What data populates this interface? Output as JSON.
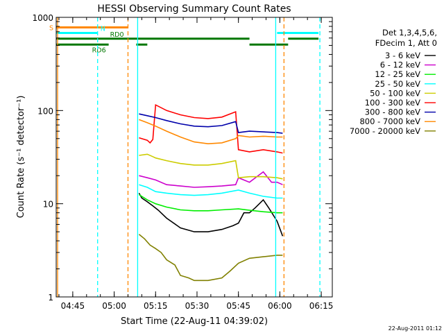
{
  "chart_data": {
    "type": "line",
    "title": "HESSI Observing Summary Count Rates",
    "xlabel": "Start Time (22-Aug-11 04:39:02)",
    "ylabel": "Count Rate (s⁻¹ detector⁻¹)",
    "x_unit": "minutes since 04:39:02",
    "xlim": [
      0,
      100
    ],
    "ylim": [
      1,
      1000
    ],
    "y_scale": "log",
    "x_ticks": [
      {
        "label": "04:45",
        "x": 6
      },
      {
        "label": "05:00",
        "x": 21
      },
      {
        "label": "05:15",
        "x": 36
      },
      {
        "label": "05:30",
        "x": 51
      },
      {
        "label": "05:45",
        "x": 66
      },
      {
        "label": "06:00",
        "x": 81
      },
      {
        "label": "06:15",
        "x": 96
      }
    ],
    "y_ticks": [
      {
        "label": "1",
        "y": 1
      },
      {
        "label": "10",
        "y": 10
      },
      {
        "label": "100",
        "y": 100
      },
      {
        "label": "1000",
        "y": 1000
      }
    ],
    "legend": {
      "header": [
        "Det 1,3,4,5,6,",
        "FDecim 1, Att 0"
      ],
      "placement": "right"
    },
    "series": [
      {
        "name": "3 - 6 keV",
        "color": "#000000",
        "x": [
          30,
          31,
          33,
          35,
          37,
          40,
          45,
          50,
          55,
          60,
          64,
          66,
          68,
          70,
          72,
          75,
          77,
          80,
          82
        ],
        "y": [
          13,
          11.5,
          10.5,
          9.5,
          8.5,
          7,
          5.5,
          5,
          5,
          5.3,
          5.8,
          6.2,
          8,
          8,
          9,
          11,
          9,
          6.5,
          4.5
        ]
      },
      {
        "name": "6 - 12 keV",
        "color": "#cc00cc",
        "x": [
          30,
          33,
          36,
          40,
          45,
          50,
          55,
          60,
          65,
          66,
          70,
          75,
          78,
          80,
          82
        ],
        "y": [
          20,
          19,
          18,
          16,
          15.5,
          15,
          15.2,
          15.5,
          16,
          19,
          17,
          22,
          17,
          17,
          16
        ]
      },
      {
        "name": "12 - 25 keV",
        "color": "#00ee00",
        "x": [
          30,
          33,
          36,
          40,
          45,
          50,
          55,
          60,
          66,
          70,
          75,
          80,
          82
        ],
        "y": [
          12.5,
          11,
          10,
          9.2,
          8.6,
          8.4,
          8.4,
          8.6,
          8.8,
          8.5,
          8.2,
          8,
          8
        ]
      },
      {
        "name": "25 - 50 keV",
        "color": "#00ffff",
        "x": [
          30,
          33,
          36,
          40,
          45,
          50,
          55,
          60,
          66,
          70,
          75,
          80,
          82
        ],
        "y": [
          16,
          15,
          13.5,
          13,
          12.5,
          12.3,
          12.5,
          13,
          14,
          13,
          12,
          11.5,
          11.5
        ]
      },
      {
        "name": "50 - 100 keV",
        "color": "#cccc00",
        "x": [
          30,
          33,
          35,
          36,
          40,
          45,
          50,
          55,
          60,
          65,
          66,
          70,
          75,
          80,
          82
        ],
        "y": [
          33,
          34,
          32,
          31,
          29,
          27,
          26,
          26,
          27,
          29,
          19,
          19.5,
          19.5,
          19,
          18.5
        ]
      },
      {
        "name": "100 - 300 keV",
        "color": "#ff0000",
        "x": [
          30,
          33,
          34,
          35,
          36,
          40,
          45,
          50,
          55,
          60,
          65,
          66,
          70,
          75,
          80,
          82
        ],
        "y": [
          51,
          48,
          45,
          49,
          115,
          100,
          90,
          84,
          82,
          85,
          97,
          38,
          36,
          38,
          36,
          35
        ]
      },
      {
        "name": "300 - 800 keV",
        "color": "#0000aa",
        "x": [
          30,
          33,
          36,
          40,
          45,
          50,
          55,
          60,
          65,
          66,
          70,
          75,
          80,
          82
        ],
        "y": [
          92,
          88,
          84,
          78,
          72,
          68,
          67,
          69,
          76,
          58,
          60,
          59,
          58,
          57
        ]
      },
      {
        "name": "800 - 7000 keV",
        "color": "#ff8800",
        "x": [
          30,
          33,
          36,
          40,
          45,
          50,
          55,
          60,
          65,
          66,
          70,
          75,
          80,
          82
        ],
        "y": [
          80,
          74,
          68,
          60,
          52,
          46,
          44,
          45,
          50,
          54,
          52,
          53,
          52,
          52
        ]
      },
      {
        "name": "7000 - 20000 keV",
        "color": "#808000",
        "x": [
          30,
          32,
          34,
          36,
          38,
          40,
          43,
          45,
          48,
          50,
          55,
          60,
          63,
          66,
          70,
          75,
          80,
          82
        ],
        "y": [
          4.7,
          4.2,
          3.6,
          3.3,
          3,
          2.5,
          2.2,
          1.7,
          1.6,
          1.5,
          1.5,
          1.6,
          1.9,
          2.3,
          2.6,
          2.7,
          2.8,
          2.8
        ]
      }
    ],
    "flags": [
      {
        "label": "S",
        "color": "#ff8800",
        "level": 780,
        "segments": [
          [
            0,
            26
          ]
        ]
      },
      {
        "label": "N",
        "color": "#00ffff",
        "level": 680,
        "segments": [
          [
            0,
            15
          ],
          [
            80,
            95
          ]
        ]
      },
      {
        "label": "RD0",
        "color": "#007700",
        "level": 590,
        "segments": [
          [
            0,
            70
          ],
          [
            84,
            95
          ]
        ]
      },
      {
        "label": "RD6",
        "color": "#007700",
        "level": 510,
        "segments": [
          [
            0,
            19
          ],
          [
            29,
            33
          ],
          [
            70,
            84
          ]
        ]
      }
    ],
    "vlines": [
      {
        "x": 0.5,
        "color": "#ff8800",
        "style": "solid"
      },
      {
        "x": 15,
        "color": "#00ffff",
        "style": "dashed"
      },
      {
        "x": 26,
        "color": "#ff8800",
        "style": "dashed"
      },
      {
        "x": 29.5,
        "color": "#00ffff",
        "style": "solid"
      },
      {
        "x": 79.5,
        "color": "#00ffff",
        "style": "solid"
      },
      {
        "x": 82.5,
        "color": "#ff8800",
        "style": "dashed"
      },
      {
        "x": 95.5,
        "color": "#00ffff",
        "style": "dashed"
      }
    ]
  },
  "footer": {
    "timestamp": "22-Aug-2011 01:12"
  }
}
